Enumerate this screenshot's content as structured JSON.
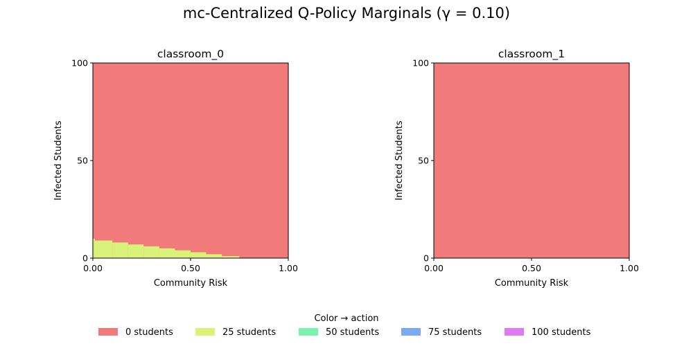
{
  "figure": {
    "title": "mc-Centralized Q-Policy Marginals (γ = 0.10)"
  },
  "legend": {
    "title": "Color → action",
    "placement": "bottom-center",
    "items": [
      {
        "label": "0 students",
        "color": "#f17b7b"
      },
      {
        "label": "25 students",
        "color": "#d9f27b"
      },
      {
        "label": "50 students",
        "color": "#7bf2ad"
      },
      {
        "label": "75 students",
        "color": "#7baaf2"
      },
      {
        "label": "100 students",
        "color": "#dc7bf2"
      }
    ]
  },
  "chart_data": [
    {
      "type": "heatmap",
      "title": "classroom_0",
      "xlabel": "Community Risk",
      "ylabel": "Infected Students",
      "xlim": [
        0,
        1
      ],
      "ylim": [
        0,
        100
      ],
      "xticks": [
        0,
        0.5,
        1
      ],
      "xtick_labels": [
        "0.00",
        "0.50",
        "1.00"
      ],
      "yticks": [
        0,
        50,
        100
      ],
      "ytick_labels": [
        "0",
        "50",
        "100"
      ],
      "grid": false,
      "background_action": "0 students",
      "regions": [
        {
          "action": "25 students",
          "x_start": 0.0,
          "x_end": 0.01,
          "y_max": 10
        },
        {
          "action": "25 students",
          "x_start": 0.01,
          "x_end": 0.1,
          "y_max": 9
        },
        {
          "action": "25 students",
          "x_start": 0.1,
          "x_end": 0.18,
          "y_max": 8
        },
        {
          "action": "25 students",
          "x_start": 0.18,
          "x_end": 0.26,
          "y_max": 7
        },
        {
          "action": "25 students",
          "x_start": 0.26,
          "x_end": 0.34,
          "y_max": 6
        },
        {
          "action": "25 students",
          "x_start": 0.34,
          "x_end": 0.42,
          "y_max": 5
        },
        {
          "action": "25 students",
          "x_start": 0.42,
          "x_end": 0.5,
          "y_max": 4
        },
        {
          "action": "25 students",
          "x_start": 0.5,
          "x_end": 0.58,
          "y_max": 3
        },
        {
          "action": "25 students",
          "x_start": 0.58,
          "x_end": 0.66,
          "y_max": 2
        },
        {
          "action": "25 students",
          "x_start": 0.66,
          "x_end": 0.75,
          "y_max": 1
        }
      ]
    },
    {
      "type": "heatmap",
      "title": "classroom_1",
      "xlabel": "Community Risk",
      "ylabel": "Infected Students",
      "xlim": [
        0,
        1
      ],
      "ylim": [
        0,
        100
      ],
      "xticks": [
        0,
        0.5,
        1
      ],
      "xtick_labels": [
        "0.00",
        "0.50",
        "1.00"
      ],
      "yticks": [
        0,
        50,
        100
      ],
      "ytick_labels": [
        "0",
        "50",
        "100"
      ],
      "grid": false,
      "background_action": "0 students",
      "regions": []
    }
  ]
}
